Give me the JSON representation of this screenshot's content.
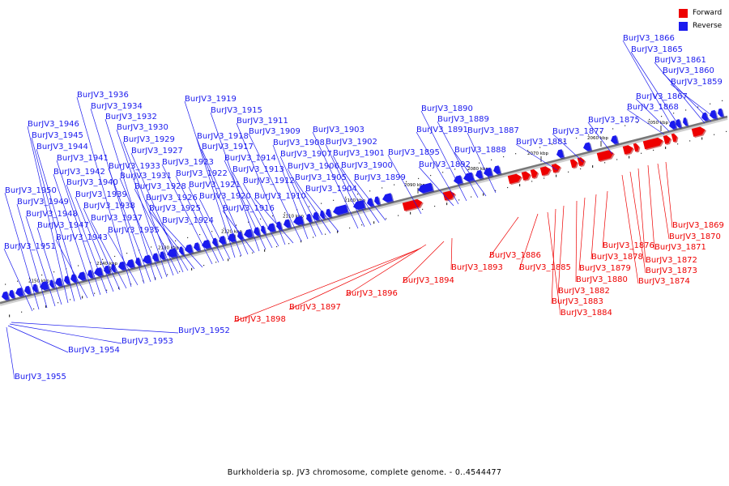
{
  "colors": {
    "forward": "#ee0000",
    "reverse": "#1a1aee",
    "axis": "#777777",
    "tick_label": "#000000"
  },
  "legend": {
    "forward_label": "Forward",
    "reverse_label": "Reverse"
  },
  "caption": "Burkholderia sp. JV3 chromosome, complete genome. - 0..4544477",
  "axis_ticks": [
    "2150 kbp",
    "2140 kbp",
    "2130 kbp",
    "2120 kbp",
    "2110 kbp",
    "2100 kbp",
    "2090 kbp",
    "2080 kbp",
    "2070 kbp",
    "2060 kbp",
    "2050 kbp"
  ],
  "reverse_genes": [
    "BurJV3_1866",
    "BurJV3_1865",
    "BurJV3_1861",
    "BurJV3_1860",
    "BurJV3_1859",
    "BurJV3_1867",
    "BurJV3_1868",
    "BurJV3_1875",
    "BurJV3_1877",
    "BurJV3_1881",
    "BurJV3_1887",
    "BurJV3_1888",
    "BurJV3_1889",
    "BurJV3_1890",
    "BurJV3_1891",
    "BurJV3_1892",
    "BurJV3_1895",
    "BurJV3_1899",
    "BurJV3_1900",
    "BurJV3_1901",
    "BurJV3_1902",
    "BurJV3_1903",
    "BurJV3_1904",
    "BurJV3_1905",
    "BurJV3_1906",
    "BurJV3_1907",
    "BurJV3_1908",
    "BurJV3_1909",
    "BurJV3_1910",
    "BurJV3_1911",
    "BurJV3_1912",
    "BurJV3_1913",
    "BurJV3_1914",
    "BurJV3_1915",
    "BurJV3_1916",
    "BurJV3_1917",
    "BurJV3_1918",
    "BurJV3_1919",
    "BurJV3_1920",
    "BurJV3_1921",
    "BurJV3_1922",
    "BurJV3_1923",
    "BurJV3_1924",
    "BurJV3_1925",
    "BurJV3_1926",
    "BurJV3_1927",
    "BurJV3_1928",
    "BurJV3_1929",
    "BurJV3_1930",
    "BurJV3_1931",
    "BurJV3_1932",
    "BurJV3_1933",
    "BurJV3_1934",
    "BurJV3_1935",
    "BurJV3_1936",
    "BurJV3_1937",
    "BurJV3_1938",
    "BurJV3_1939",
    "BurJV3_1940",
    "BurJV3_1941",
    "BurJV3_1942",
    "BurJV3_1943",
    "BurJV3_1944",
    "BurJV3_1945",
    "BurJV3_1946",
    "BurJV3_1947",
    "BurJV3_1948",
    "BurJV3_1949",
    "BurJV3_1950",
    "BurJV3_1951",
    "BurJV3_1952",
    "BurJV3_1953",
    "BurJV3_1954",
    "BurJV3_1955"
  ],
  "forward_genes": [
    "BurJV3_1869",
    "BurJV3_1870",
    "BurJV3_1871",
    "BurJV3_1872",
    "BurJV3_1873",
    "BurJV3_1874",
    "BurJV3_1876",
    "BurJV3_1878",
    "BurJV3_1879",
    "BurJV3_1880",
    "BurJV3_1882",
    "BurJV3_1883",
    "BurJV3_1884",
    "BurJV3_1885",
    "BurJV3_1886",
    "BurJV3_1893",
    "BurJV3_1894",
    "BurJV3_1896",
    "BurJV3_1897",
    "BurJV3_1898"
  ]
}
